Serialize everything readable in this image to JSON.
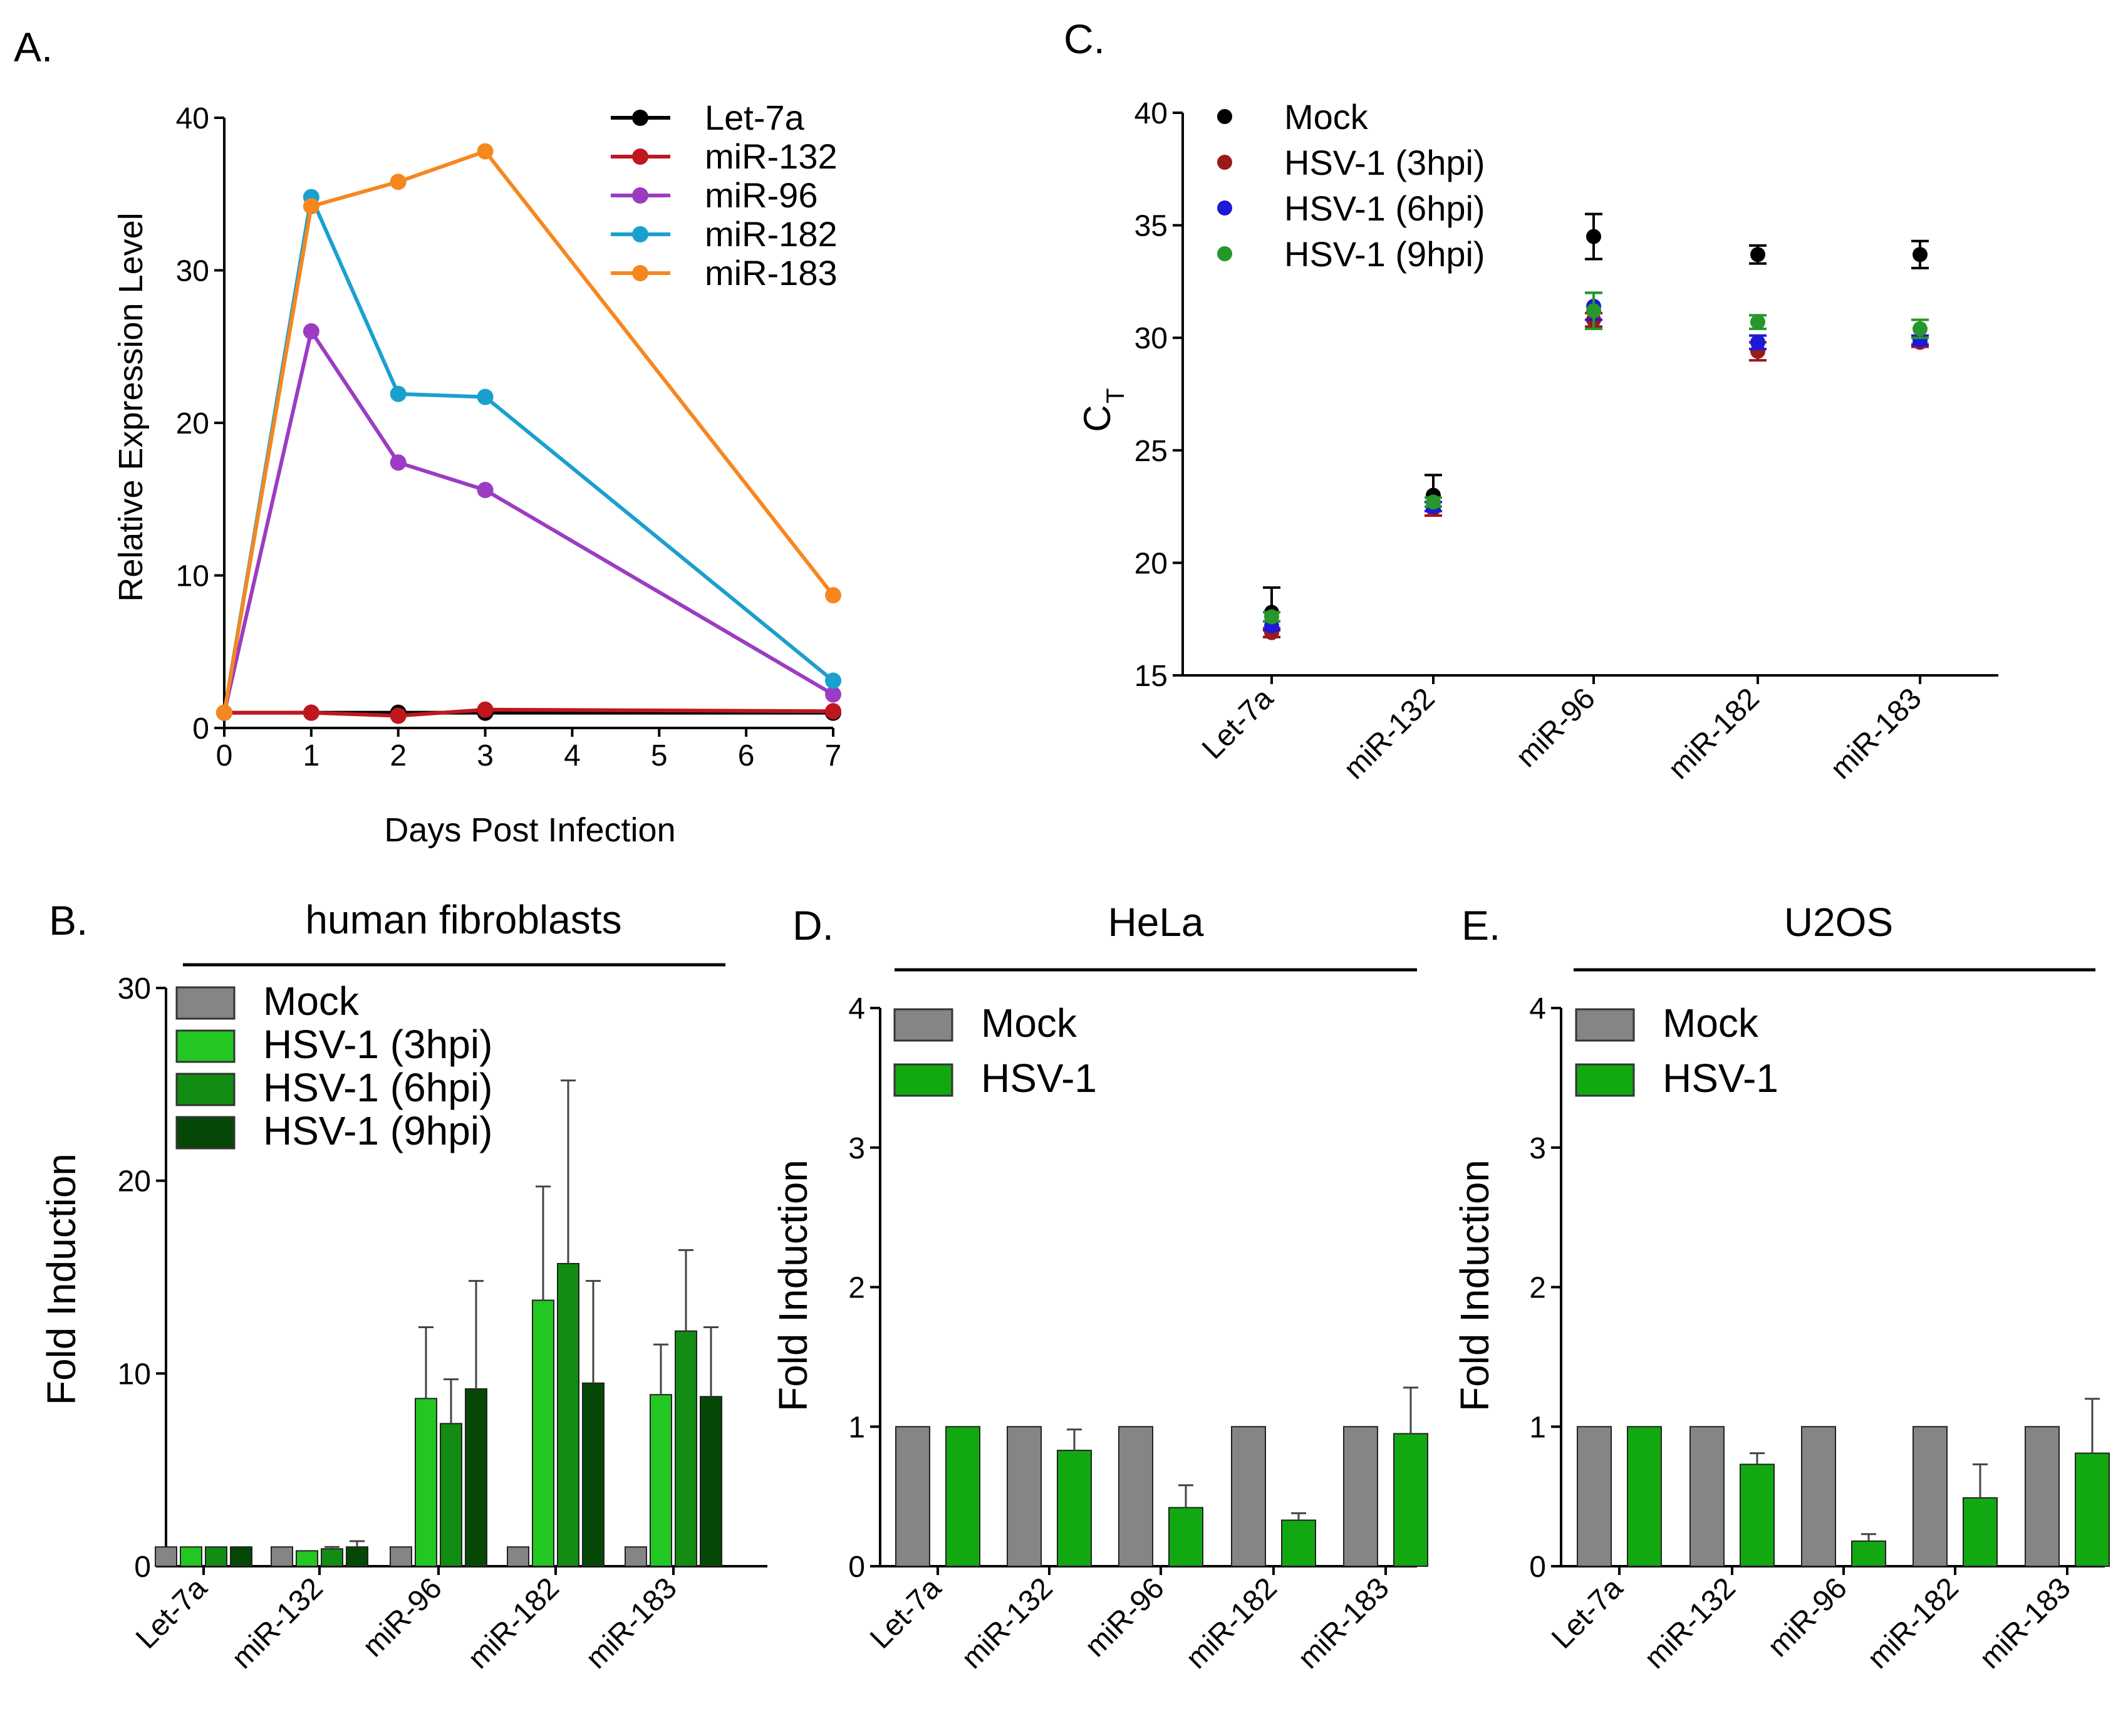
{
  "chart_data": [
    {
      "panel": "A.",
      "type": "line",
      "xlabel": "Days Post Infection",
      "ylabel": "Relative Expression Level",
      "xlim": [
        0,
        7
      ],
      "ylim": [
        0,
        40
      ],
      "xticks": [
        "0",
        "1",
        "2",
        "3",
        "4",
        "5",
        "6",
        "7"
      ],
      "yticks": [
        "0",
        "10",
        "20",
        "30",
        "40"
      ],
      "x": [
        0,
        1,
        2,
        3,
        7
      ],
      "legend": "top-right",
      "series": [
        {
          "name": "Let-7a",
          "color": "#000000",
          "values": [
            1,
            1,
            1,
            1,
            1
          ]
        },
        {
          "name": "miR-132",
          "color": "#c0171f",
          "values": [
            1,
            1,
            0.8,
            1.2,
            1.1
          ]
        },
        {
          "name": "miR-96",
          "color": "#9b3cc2",
          "values": [
            1,
            26,
            17.4,
            15.6,
            2.2
          ]
        },
        {
          "name": "miR-182",
          "color": "#1aa0cf",
          "values": [
            1,
            34.8,
            21.9,
            21.7,
            3.1
          ]
        },
        {
          "name": "miR-183",
          "color": "#f6871f",
          "values": [
            1,
            34.2,
            35.8,
            37.8,
            8.7
          ]
        }
      ]
    },
    {
      "panel": "C.",
      "type": "scatter",
      "ylabel_main": "C",
      "ylabel_sub": "T",
      "ylim": [
        15,
        40
      ],
      "yticks": [
        "15",
        "20",
        "25",
        "30",
        "35",
        "40"
      ],
      "categories": [
        "Let-7a",
        "miR-132",
        "miR-96",
        "miR-182",
        "miR-183"
      ],
      "legend": "top-left",
      "series": [
        {
          "name": "Mock",
          "color": "#000000",
          "values": [
            17.8,
            23.0,
            34.5,
            33.7,
            33.7
          ],
          "errors": [
            1.1,
            0.9,
            1.0,
            0.4,
            0.6
          ]
        },
        {
          "name": "HSV-1 (3hpi)",
          "color": "#9b1a1a",
          "values": [
            16.9,
            22.4,
            30.8,
            29.4,
            29.8
          ],
          "errors": [
            0.2,
            0.3,
            0.3,
            0.4,
            0.2
          ]
        },
        {
          "name": "HSV-1 (6hpi)",
          "color": "#1a1ad8",
          "values": [
            17.2,
            22.5,
            31.4,
            29.8,
            29.9
          ],
          "errors": [
            0.2,
            0.2,
            0.6,
            0.3,
            0.2
          ]
        },
        {
          "name": "HSV-1 (9hpi)",
          "color": "#27962b",
          "values": [
            17.6,
            22.7,
            31.2,
            30.7,
            30.4
          ],
          "errors": [
            0.2,
            0.2,
            0.8,
            0.3,
            0.4
          ]
        }
      ]
    },
    {
      "panel": "B.",
      "type": "bar",
      "title": "human fibroblasts",
      "ylabel": "Fold Induction",
      "ylim": [
        0,
        30
      ],
      "yticks": [
        "0",
        "10",
        "20",
        "30"
      ],
      "categories": [
        "Let-7a",
        "miR-132",
        "miR-96",
        "miR-182",
        "miR-183"
      ],
      "legend": "top-left",
      "series": [
        {
          "name": "Mock",
          "color": "#858585",
          "values": [
            1,
            1,
            1,
            1,
            1
          ],
          "errors": [
            0,
            0,
            0,
            0,
            0
          ]
        },
        {
          "name": "HSV-1 (3hpi)",
          "color": "#22c722",
          "values": [
            1,
            0.8,
            8.7,
            13.8,
            8.9
          ],
          "errors": [
            0,
            0,
            3.7,
            5.9,
            2.6
          ]
        },
        {
          "name": "HSV-1 (6hpi)",
          "color": "#128c12",
          "values": [
            1,
            0.9,
            7.4,
            15.7,
            12.2
          ],
          "errors": [
            0,
            0.1,
            2.3,
            9.5,
            4.2
          ]
        },
        {
          "name": "HSV-1 (9hpi)",
          "color": "#054805",
          "values": [
            1,
            1.0,
            9.2,
            9.5,
            8.8
          ],
          "errors": [
            0,
            0.3,
            5.6,
            5.3,
            3.6
          ]
        }
      ]
    },
    {
      "panel": "D.",
      "type": "bar",
      "title": "HeLa",
      "ylabel": "Fold Induction",
      "ylim": [
        0,
        4
      ],
      "yticks": [
        "0",
        "1",
        "2",
        "3",
        "4"
      ],
      "categories": [
        "Let-7a",
        "miR-132",
        "miR-96",
        "miR-182",
        "miR-183"
      ],
      "legend": "top-left",
      "series": [
        {
          "name": "Mock",
          "color": "#858585",
          "values": [
            1,
            1,
            1,
            1,
            1
          ],
          "errors": [
            0,
            0,
            0,
            0,
            0
          ]
        },
        {
          "name": "HSV-1",
          "color": "#12a812",
          "values": [
            1,
            0.83,
            0.42,
            0.33,
            0.95
          ],
          "errors": [
            0,
            0.15,
            0.16,
            0.05,
            0.33
          ]
        }
      ]
    },
    {
      "panel": "E.",
      "type": "bar",
      "title": "U2OS",
      "ylabel": "Fold Induction",
      "ylim": [
        0,
        4
      ],
      "yticks": [
        "0",
        "1",
        "2",
        "3",
        "4"
      ],
      "categories": [
        "Let-7a",
        "miR-132",
        "miR-96",
        "miR-182",
        "miR-183"
      ],
      "legend": "top-left",
      "series": [
        {
          "name": "Mock",
          "color": "#858585",
          "values": [
            1,
            1,
            1,
            1,
            1
          ],
          "errors": [
            0,
            0,
            0,
            0,
            0
          ]
        },
        {
          "name": "HSV-1",
          "color": "#12a812",
          "values": [
            1,
            0.73,
            0.18,
            0.49,
            0.81
          ],
          "errors": [
            0,
            0.08,
            0.05,
            0.24,
            0.39
          ]
        }
      ]
    }
  ]
}
